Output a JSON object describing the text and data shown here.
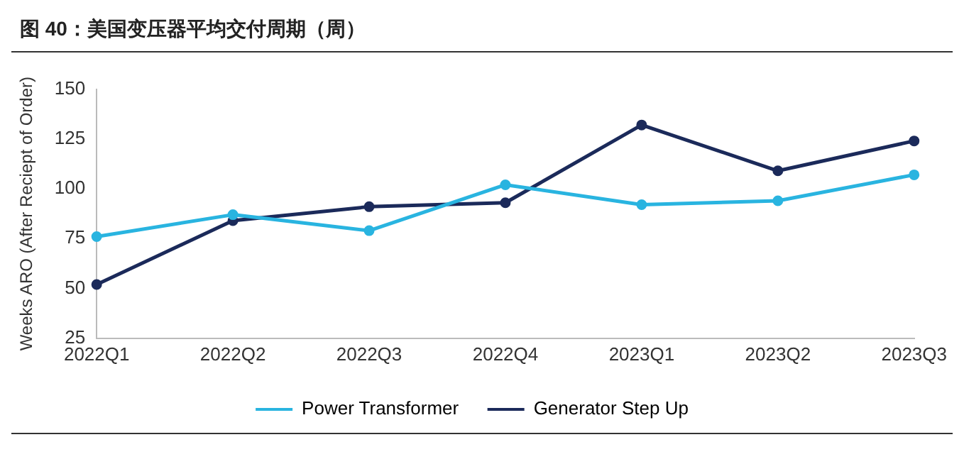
{
  "chart_data": {
    "type": "line",
    "title": "图 40：美国变压器平均交付周期（周）",
    "ylabel": "Weeks ARO (After Reciept of Order)",
    "categories": [
      "2022Q1",
      "2022Q2",
      "2022Q3",
      "2022Q4",
      "2023Q1",
      "2023Q2",
      "2023Q3"
    ],
    "series": [
      {
        "name": "Power Transformer",
        "color": "#29b4e0",
        "values": [
          76,
          87,
          79,
          102,
          92,
          94,
          107
        ]
      },
      {
        "name": "Generator Step Up",
        "color": "#1b2a5a",
        "values": [
          52,
          84,
          91,
          93,
          132,
          109,
          124
        ]
      }
    ],
    "ylim": [
      25,
      150
    ],
    "yticks": [
      25,
      50,
      75,
      100,
      125,
      150
    ],
    "grid": false,
    "legend": "bottom",
    "marker": "circle",
    "line_style": "solid"
  }
}
